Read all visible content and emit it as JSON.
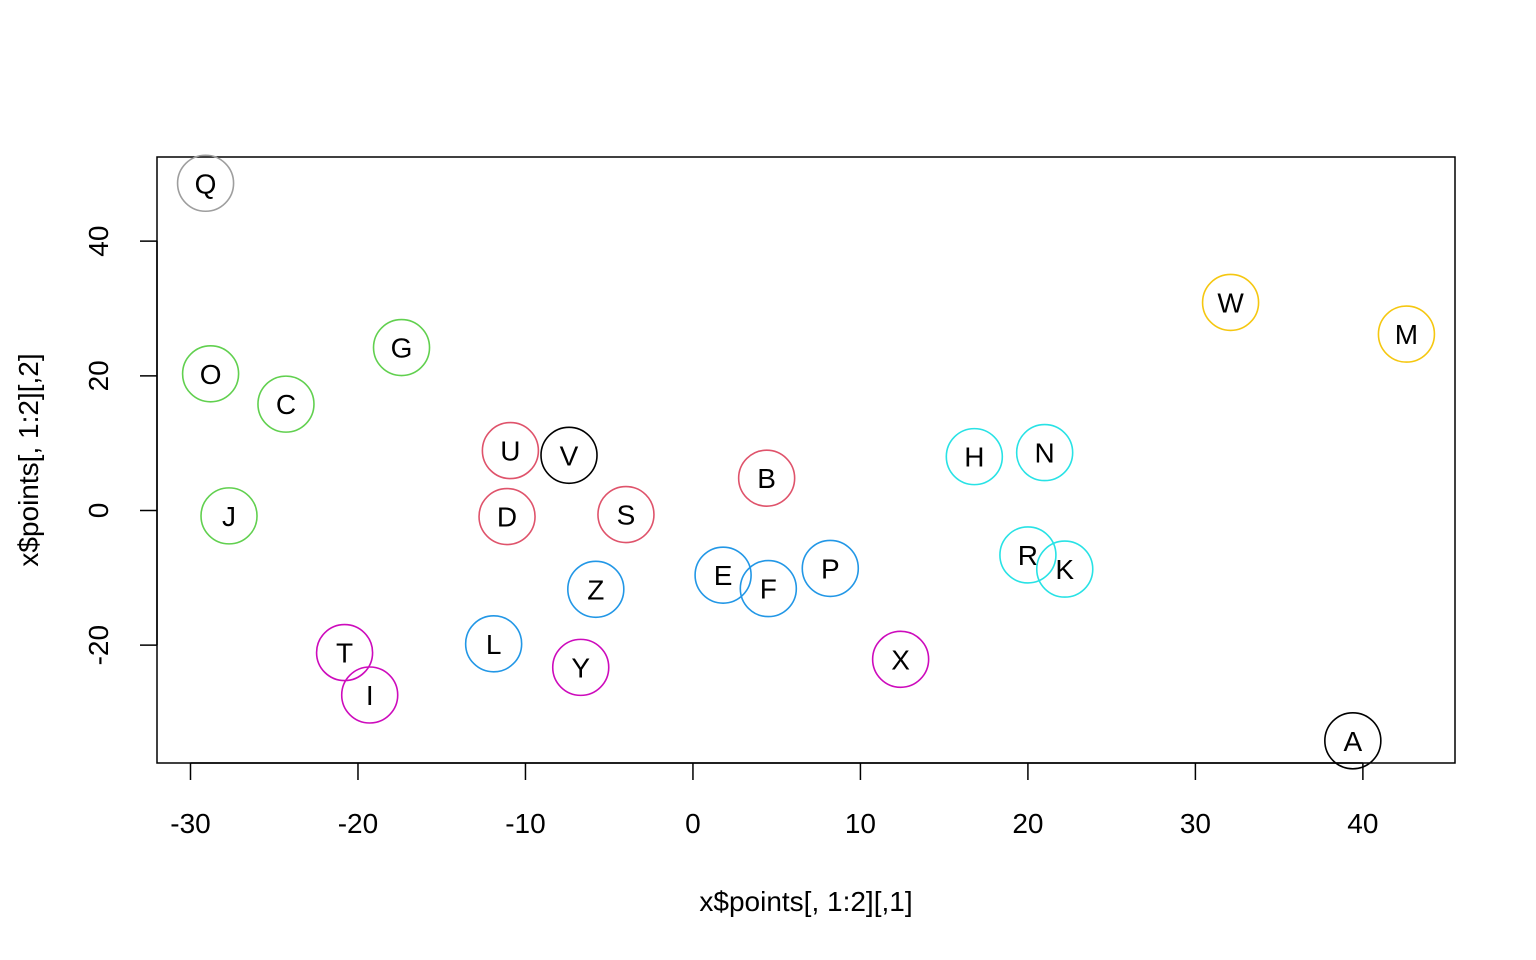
{
  "chart_data": {
    "type": "scatter",
    "xlabel": "x$points[, 1:2][,1]",
    "ylabel": "x$points[, 1:2][,2]",
    "xlim": [
      -32,
      45.5
    ],
    "ylim": [
      -37.5,
      52.5
    ],
    "x_ticks": [
      -30,
      -20,
      -10,
      0,
      10,
      20,
      30,
      40
    ],
    "y_ticks": [
      -20,
      0,
      20,
      40
    ],
    "grid": false,
    "point_style": "open-circle-with-letter",
    "points": [
      {
        "label": "Q",
        "x": -29.1,
        "y": 48.6,
        "color": "#9E9E9E"
      },
      {
        "label": "G",
        "x": -17.4,
        "y": 24.2,
        "color": "#61D04F"
      },
      {
        "label": "O",
        "x": -28.8,
        "y": 20.3,
        "color": "#61D04F"
      },
      {
        "label": "C",
        "x": -24.3,
        "y": 15.8,
        "color": "#61D04F"
      },
      {
        "label": "J",
        "x": -27.7,
        "y": -0.8,
        "color": "#61D04F"
      },
      {
        "label": "U",
        "x": -10.9,
        "y": 8.9,
        "color": "#DF536B"
      },
      {
        "label": "D",
        "x": -11.1,
        "y": -0.9,
        "color": "#DF536B"
      },
      {
        "label": "S",
        "x": -4.0,
        "y": -0.6,
        "color": "#DF536B"
      },
      {
        "label": "B",
        "x": 4.4,
        "y": 4.8,
        "color": "#DF536B"
      },
      {
        "label": "V",
        "x": -7.4,
        "y": 8.2,
        "color": "#000000"
      },
      {
        "label": "Z",
        "x": -5.8,
        "y": -11.7,
        "color": "#2297E6"
      },
      {
        "label": "L",
        "x": -11.9,
        "y": -19.8,
        "color": "#2297E6"
      },
      {
        "label": "E",
        "x": 1.8,
        "y": -9.6,
        "color": "#2297E6"
      },
      {
        "label": "F",
        "x": 4.5,
        "y": -11.6,
        "color": "#2297E6"
      },
      {
        "label": "P",
        "x": 8.2,
        "y": -8.6,
        "color": "#2297E6"
      },
      {
        "label": "T",
        "x": -20.8,
        "y": -21.1,
        "color": "#CD0BBC"
      },
      {
        "label": "I",
        "x": -19.3,
        "y": -27.4,
        "color": "#CD0BBC"
      },
      {
        "label": "Y",
        "x": -6.7,
        "y": -23.3,
        "color": "#CD0BBC"
      },
      {
        "label": "X",
        "x": 12.4,
        "y": -22.1,
        "color": "#CD0BBC"
      },
      {
        "label": "H",
        "x": 16.8,
        "y": 8.0,
        "color": "#28E2E5"
      },
      {
        "label": "N",
        "x": 21.0,
        "y": 8.6,
        "color": "#28E2E5"
      },
      {
        "label": "R",
        "x": 20.0,
        "y": -6.6,
        "color": "#28E2E5"
      },
      {
        "label": "K",
        "x": 22.2,
        "y": -8.7,
        "color": "#28E2E5"
      },
      {
        "label": "W",
        "x": 32.1,
        "y": 30.9,
        "color": "#F5C710"
      },
      {
        "label": "M",
        "x": 42.6,
        "y": 26.2,
        "color": "#F5C710"
      },
      {
        "label": "A",
        "x": 39.4,
        "y": -34.2,
        "color": "#000000"
      }
    ]
  }
}
